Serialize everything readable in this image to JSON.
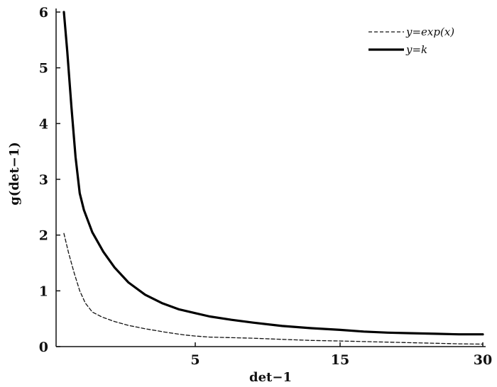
{
  "chart_data": {
    "type": "line",
    "title": "",
    "xlabel": "det−1",
    "ylabel": "g(det−1)",
    "xticks": [
      {
        "label": "5",
        "value": 5
      },
      {
        "label": "15",
        "value": 15
      },
      {
        "label": "30",
        "value": 30
      }
    ],
    "yticks": [
      0,
      1,
      2,
      3,
      4,
      5,
      6
    ],
    "ylim": [
      0,
      6
    ],
    "grid": false,
    "legend_position": "top-right",
    "series": [
      {
        "name": "y=exp(x)",
        "style": "dashed",
        "color": "#111111",
        "points": [
          [
            0.28,
            2.03
          ],
          [
            0.45,
            1.68
          ],
          [
            0.65,
            1.32
          ],
          [
            0.85,
            1.0
          ],
          [
            1.05,
            0.78
          ],
          [
            1.3,
            0.62
          ],
          [
            1.65,
            0.53
          ],
          [
            2.1,
            0.45
          ],
          [
            2.6,
            0.38
          ],
          [
            3.2,
            0.32
          ],
          [
            3.9,
            0.26
          ],
          [
            4.6,
            0.21
          ],
          [
            5.0,
            0.19
          ],
          [
            6.0,
            0.17
          ],
          [
            7.5,
            0.16
          ],
          [
            9.0,
            0.15
          ],
          [
            11.0,
            0.13
          ],
          [
            13.0,
            0.11
          ],
          [
            15.0,
            0.1
          ],
          [
            17.5,
            0.09
          ],
          [
            20.0,
            0.08
          ],
          [
            22.5,
            0.07
          ],
          [
            25.0,
            0.06
          ],
          [
            27.5,
            0.05
          ],
          [
            30.0,
            0.045
          ]
        ]
      },
      {
        "name": "y=k",
        "style": "solid",
        "color": "#000000",
        "points": [
          [
            0.28,
            6.0
          ],
          [
            0.4,
            5.3
          ],
          [
            0.55,
            4.3
          ],
          [
            0.7,
            3.4
          ],
          [
            0.85,
            2.75
          ],
          [
            1.0,
            2.45
          ],
          [
            1.3,
            2.05
          ],
          [
            1.7,
            1.7
          ],
          [
            2.1,
            1.42
          ],
          [
            2.6,
            1.15
          ],
          [
            3.2,
            0.93
          ],
          [
            3.8,
            0.78
          ],
          [
            4.4,
            0.67
          ],
          [
            5.0,
            0.6
          ],
          [
            6.0,
            0.54
          ],
          [
            7.5,
            0.48
          ],
          [
            9.0,
            0.43
          ],
          [
            11.0,
            0.37
          ],
          [
            13.0,
            0.33
          ],
          [
            15.0,
            0.3
          ],
          [
            17.5,
            0.27
          ],
          [
            20.0,
            0.25
          ],
          [
            22.5,
            0.24
          ],
          [
            25.0,
            0.23
          ],
          [
            27.5,
            0.22
          ],
          [
            30.0,
            0.22
          ]
        ]
      }
    ]
  }
}
